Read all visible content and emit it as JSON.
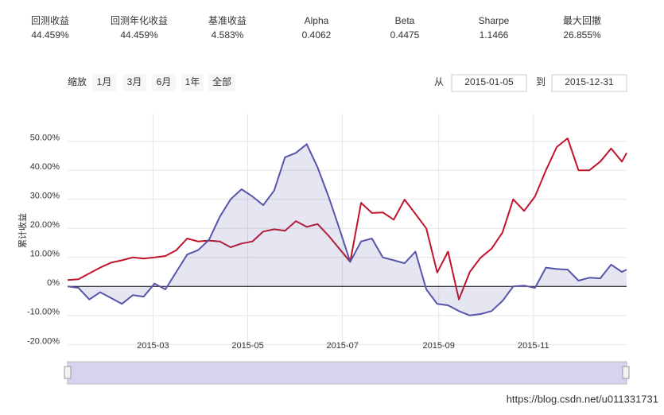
{
  "stats": [
    {
      "label": "回测收益",
      "value": "44.459%",
      "color": "#c0142c"
    },
    {
      "label": "回测年化收益",
      "value": "44.459%",
      "color": "#c0142c"
    },
    {
      "label": "基准收益",
      "value": "4.583%",
      "color": "#5555aa"
    },
    {
      "label": "Alpha",
      "value": "0.4062",
      "color": "#333333"
    },
    {
      "label": "Beta",
      "value": "0.4475",
      "color": "#333333"
    },
    {
      "label": "Sharpe",
      "value": "1.1466",
      "color": "#333333"
    },
    {
      "label": "最大回撤",
      "value": "26.855%",
      "color": "#333333"
    }
  ],
  "zoom": {
    "label": "缩放",
    "buttons": [
      {
        "label": "1月",
        "disabled": false
      },
      {
        "label": "3月",
        "disabled": false
      },
      {
        "label": "6月",
        "disabled": false
      },
      {
        "label": "1年",
        "disabled": true
      },
      {
        "label": "全部",
        "disabled": false
      }
    ]
  },
  "range": {
    "from_label": "从",
    "from": "2015-01-05",
    "to_label": "到",
    "to": "2015-12-31"
  },
  "chart_data": {
    "type": "line",
    "y_label": "累计收益",
    "grid": true,
    "x": [
      "2015-01-05",
      "2015-01-12",
      "2015-01-19",
      "2015-01-26",
      "2015-02-02",
      "2015-02-09",
      "2015-02-16",
      "2015-02-23",
      "2015-03-02",
      "2015-03-09",
      "2015-03-16",
      "2015-03-23",
      "2015-03-30",
      "2015-04-06",
      "2015-04-13",
      "2015-04-20",
      "2015-04-27",
      "2015-05-04",
      "2015-05-11",
      "2015-05-18",
      "2015-05-25",
      "2015-06-01",
      "2015-06-08",
      "2015-06-15",
      "2015-06-22",
      "2015-06-29",
      "2015-07-06",
      "2015-07-13",
      "2015-07-20",
      "2015-07-27",
      "2015-08-03",
      "2015-08-10",
      "2015-08-17",
      "2015-08-24",
      "2015-08-31",
      "2015-09-07",
      "2015-09-14",
      "2015-09-21",
      "2015-09-28",
      "2015-10-05",
      "2015-10-12",
      "2015-10-19",
      "2015-10-26",
      "2015-11-02",
      "2015-11-09",
      "2015-11-16",
      "2015-11-23",
      "2015-11-30",
      "2015-12-07",
      "2015-12-14",
      "2015-12-21",
      "2015-12-28",
      "2015-12-31"
    ],
    "series": [
      {
        "color": "#c0142c",
        "area": false,
        "values": [
          2.2,
          2.5,
          4.5,
          6.5,
          8.2,
          9.0,
          10.0,
          9.6,
          10.0,
          10.5,
          12.5,
          16.5,
          15.5,
          15.8,
          15.5,
          13.5,
          14.8,
          15.5,
          18.9,
          19.7,
          19.2,
          22.5,
          20.5,
          21.5,
          17.5,
          13,
          8.5,
          28.8,
          25.3,
          25.5,
          23,
          29.9,
          25,
          20,
          4.8,
          12,
          -4.5,
          5,
          9.9,
          13,
          18.5,
          30,
          26,
          31,
          40,
          48,
          51,
          40,
          40,
          43,
          47.5,
          43,
          46
        ]
      },
      {
        "color": "#5555aa",
        "area": true,
        "values": [
          0,
          -0.5,
          -4.5,
          -2,
          -4,
          -6,
          -3,
          -3.5,
          1,
          -1,
          5,
          11,
          12.5,
          16,
          24,
          30,
          33.5,
          31,
          28,
          33,
          44.5,
          46,
          49,
          41,
          31,
          20,
          8.5,
          15.5,
          16.5,
          10,
          9,
          8,
          12,
          -1,
          -6,
          -6.5,
          -8.5,
          -10,
          -9.5,
          -8.5,
          -5,
          0,
          0.3,
          -0.5,
          6.5,
          6,
          5.8,
          2,
          3,
          2.8,
          7.5,
          5,
          5.8
        ]
      }
    ],
    "xlim": [
      "2015-01-05",
      "2015-12-31"
    ],
    "xticks": [
      {
        "value": "2015-03-01",
        "label": "2015-03"
      },
      {
        "value": "2015-05-01",
        "label": "2015-05"
      },
      {
        "value": "2015-07-01",
        "label": "2015-07"
      },
      {
        "value": "2015-09-01",
        "label": "2015-09"
      },
      {
        "value": "2015-11-01",
        "label": "2015-11"
      }
    ],
    "ylim": [
      -21,
      59.5
    ],
    "yticks": [
      {
        "value": 50,
        "label": "50.00%"
      },
      {
        "value": 40,
        "label": "40.00%"
      },
      {
        "value": 30,
        "label": "30.00%"
      },
      {
        "value": 20,
        "label": "20.00%"
      },
      {
        "value": 10,
        "label": "10.00%"
      },
      {
        "value": 0,
        "label": "0%"
      },
      {
        "value": -10,
        "label": "-10.00%"
      },
      {
        "value": -20,
        "label": "-20.00%"
      }
    ]
  },
  "watermark": "https://blog.csdn.net/u011331731"
}
